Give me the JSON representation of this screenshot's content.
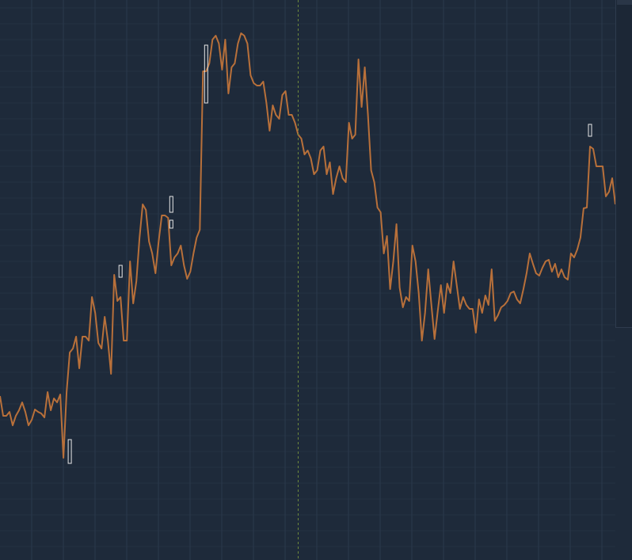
{
  "chart_data": {
    "type": "line",
    "title": "",
    "xlabel": "",
    "ylabel": "",
    "x": [
      0,
      1,
      2,
      3,
      4,
      5,
      6,
      7,
      8,
      9,
      10,
      11,
      12,
      13,
      14,
      15,
      16,
      17,
      18,
      19,
      20,
      21,
      22,
      23,
      24,
      25,
      26,
      27,
      28,
      29,
      30,
      31,
      32,
      33,
      34,
      35,
      36,
      37,
      38,
      39,
      40,
      41,
      42,
      43,
      44,
      45,
      46,
      47,
      48,
      49,
      50,
      51,
      52,
      53,
      54,
      55,
      56,
      57,
      58,
      59,
      60,
      61,
      62,
      63,
      64,
      65,
      66,
      67,
      68,
      69,
      70,
      71,
      72,
      73,
      74,
      75,
      76,
      77,
      78,
      79,
      80,
      81,
      82,
      83,
      84,
      85,
      86,
      87,
      88,
      89,
      90,
      91,
      92,
      93,
      94,
      95,
      96,
      97,
      98,
      99,
      100,
      101,
      102,
      103,
      104,
      105,
      106,
      107,
      108,
      109,
      110,
      111,
      112,
      113,
      114,
      115,
      116,
      117,
      118,
      119,
      120,
      121,
      122,
      123,
      124,
      125,
      126,
      127,
      128,
      129,
      130,
      131,
      132,
      133,
      134,
      135,
      136,
      137,
      138,
      139,
      140,
      141,
      142,
      143,
      144,
      145,
      146,
      147,
      148,
      149,
      150,
      151,
      152,
      153,
      154,
      155,
      156,
      157,
      158,
      159,
      160,
      161,
      162,
      163,
      164,
      165,
      166,
      167,
      168,
      169,
      170,
      171,
      172,
      173,
      174,
      175,
      176,
      177,
      178,
      179,
      180,
      181,
      182,
      183,
      184,
      185,
      186,
      187,
      188,
      189,
      190,
      191,
      192,
      193,
      194
    ],
    "series": [
      {
        "name": "",
        "color": "#b8703a",
        "values": [
          500,
          525,
          525,
          520,
          537,
          525,
          518,
          508,
          520,
          537,
          530,
          517,
          520,
          522,
          527,
          495,
          518,
          503,
          508,
          498,
          578,
          495,
          445,
          440,
          425,
          465,
          425,
          425,
          430,
          375,
          395,
          433,
          440,
          400,
          430,
          472,
          347,
          380,
          375,
          430,
          430,
          330,
          383,
          355,
          300,
          258,
          265,
          305,
          320,
          345,
          305,
          272,
          272,
          275,
          335,
          325,
          320,
          310,
          335,
          352,
          343,
          320,
          300,
          290,
          90,
          90,
          80,
          50,
          45,
          55,
          88,
          50,
          118,
          85,
          80,
          55,
          42,
          45,
          55,
          95,
          105,
          108,
          108,
          103,
          130,
          165,
          133,
          145,
          150,
          120,
          115,
          145,
          145,
          155,
          170,
          175,
          195,
          190,
          200,
          220,
          215,
          190,
          185,
          220,
          205,
          245,
          225,
          210,
          225,
          230,
          155,
          175,
          170,
          75,
          135,
          85,
          145,
          215,
          230,
          262,
          268,
          320,
          298,
          365,
          330,
          283,
          363,
          388,
          375,
          380,
          310,
          330,
          370,
          430,
          395,
          340,
          385,
          428,
          393,
          360,
          395,
          358,
          370,
          330,
          360,
          390,
          375,
          385,
          390,
          390,
          420,
          378,
          395,
          373,
          385,
          340,
          405,
          398,
          388,
          385,
          380,
          370,
          368,
          378,
          383,
          365,
          345,
          320,
          333,
          345,
          348,
          338,
          330,
          328,
          343,
          333,
          350,
          340,
          350,
          353,
          320,
          325,
          315,
          300,
          263,
          262,
          185,
          188,
          210,
          210,
          210,
          248,
          242,
          225,
          258
        ]
      }
    ],
    "markers": [
      {
        "x": 22,
        "y_low": 555,
        "y_high": 585
      },
      {
        "x": 38,
        "y_low": 335,
        "y_high": 350
      },
      {
        "x": 54,
        "y_low": 248,
        "y_high": 268
      },
      {
        "x": 54,
        "y_low": 278,
        "y_high": 288
      },
      {
        "x": 65,
        "y_low": 57,
        "y_high": 130
      },
      {
        "x": 186,
        "y_low": 157,
        "y_high": 172
      }
    ],
    "crosshair_x": 94,
    "ylim": [
      707,
      0
    ],
    "xlim": [
      0,
      194
    ],
    "grid": true,
    "colors": {
      "background": "#1e2a3a",
      "grid": "#2a394c",
      "crosshair": "#6e8a3c",
      "marker_stroke": "#e6e6e6"
    }
  }
}
